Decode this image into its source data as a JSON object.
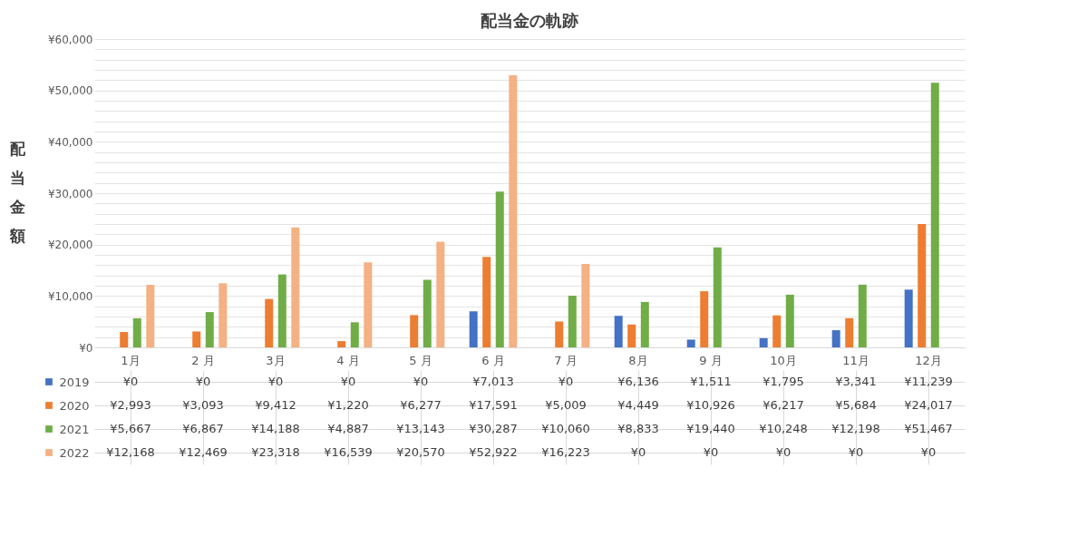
{
  "chart_data": {
    "type": "bar",
    "title": "配当金の軌跡",
    "ylabel": "配当金額",
    "categories": [
      "1月",
      "2 月",
      "3月",
      "4 月",
      "5 月",
      "6 月",
      "7 月",
      "8月",
      "9 月",
      "10月",
      "11月",
      "12月"
    ],
    "series": [
      {
        "name": "2019",
        "color": "#4472c4",
        "values": [
          0,
          0,
          0,
          0,
          0,
          7013,
          0,
          6136,
          1511,
          1795,
          3341,
          11239
        ],
        "value_labels": [
          "¥0",
          "¥0",
          "¥0",
          "¥0",
          "¥0",
          "¥7,013",
          "¥0",
          "¥6,136",
          "¥1,511",
          "¥1,795",
          "¥3,341",
          "¥11,239"
        ]
      },
      {
        "name": "2020",
        "color": "#ed7d31",
        "values": [
          2993,
          3093,
          9412,
          1220,
          6277,
          17591,
          5009,
          4449,
          10926,
          6217,
          5684,
          24017
        ],
        "value_labels": [
          "¥2,993",
          "¥3,093",
          "¥9,412",
          "¥1,220",
          "¥6,277",
          "¥17,591",
          "¥5,009",
          "¥4,449",
          "¥10,926",
          "¥6,217",
          "¥5,684",
          "¥24,017"
        ]
      },
      {
        "name": "2021",
        "color": "#70ad47",
        "values": [
          5667,
          6867,
          14188,
          4887,
          13143,
          30287,
          10060,
          8833,
          19440,
          10248,
          12198,
          51467
        ],
        "value_labels": [
          "¥5,667",
          "¥6,867",
          "¥14,188",
          "¥4,887",
          "¥13,143",
          "¥30,287",
          "¥10,060",
          "¥8,833",
          "¥19,440",
          "¥10,248",
          "¥12,198",
          "¥51,467"
        ]
      },
      {
        "name": "2022",
        "color": "#f4b183",
        "values": [
          12168,
          12469,
          23318,
          16539,
          20570,
          52922,
          16223,
          0,
          0,
          0,
          0,
          0
        ],
        "value_labels": [
          "¥12,168",
          "¥12,469",
          "¥23,318",
          "¥16,539",
          "¥20,570",
          "¥52,922",
          "¥16,223",
          "¥0",
          "¥0",
          "¥0",
          "¥0",
          "¥0"
        ]
      }
    ],
    "ylim": [
      0,
      60000
    ],
    "yticks": [
      {
        "value": 0,
        "label": "¥0"
      },
      {
        "value": 2000,
        "label": null
      },
      {
        "value": 4000,
        "label": null
      },
      {
        "value": 6000,
        "label": null
      },
      {
        "value": 8000,
        "label": null
      },
      {
        "value": 10000,
        "label": "¥10,000"
      },
      {
        "value": 12000,
        "label": null
      },
      {
        "value": 14000,
        "label": null
      },
      {
        "value": 16000,
        "label": null
      },
      {
        "value": 18000,
        "label": null
      },
      {
        "value": 20000,
        "label": "¥20,000"
      },
      {
        "value": 22000,
        "label": null
      },
      {
        "value": 24000,
        "label": null
      },
      {
        "value": 26000,
        "label": null
      },
      {
        "value": 28000,
        "label": null
      },
      {
        "value": 30000,
        "label": "¥30,000"
      },
      {
        "value": 32000,
        "label": null
      },
      {
        "value": 34000,
        "label": null
      },
      {
        "value": 36000,
        "label": null
      },
      {
        "value": 38000,
        "label": null
      },
      {
        "value": 40000,
        "label": "¥40,000"
      },
      {
        "value": 42000,
        "label": null
      },
      {
        "value": 44000,
        "label": null
      },
      {
        "value": 46000,
        "label": null
      },
      {
        "value": 48000,
        "label": null
      },
      {
        "value": 50000,
        "label": "¥50,000"
      },
      {
        "value": 52000,
        "label": null
      },
      {
        "value": 54000,
        "label": null
      },
      {
        "value": 56000,
        "label": null
      },
      {
        "value": 58000,
        "label": null
      },
      {
        "value": 60000,
        "label": "¥60,000"
      }
    ],
    "grid": "y",
    "legend": "bottom"
  }
}
